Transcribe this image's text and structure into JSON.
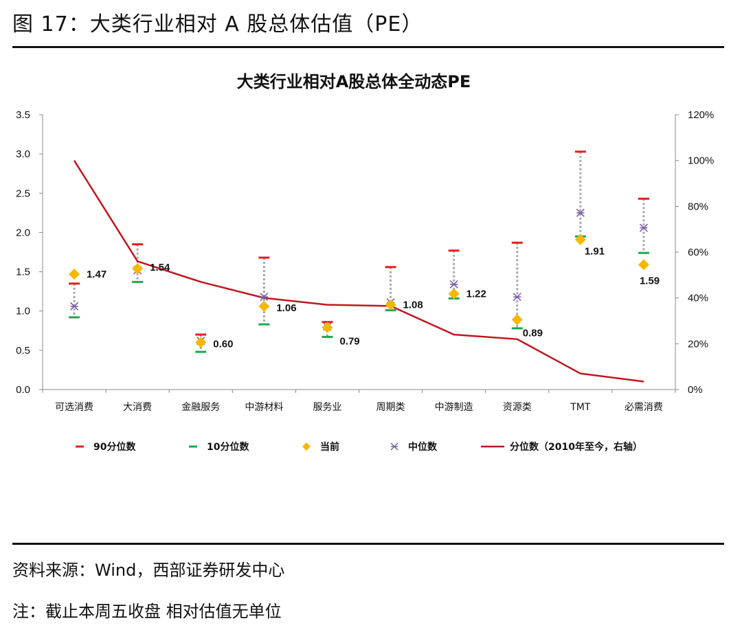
{
  "figure_title": "图 17：大类行业相对 A 股总体估值（PE）",
  "source_note": "资料来源：Wind，西部证券研发中心",
  "remark_note": "注：截止本周五收盘 相对估值无单位",
  "chart_data": {
    "type": "scatter",
    "title": "大类行业相对A股总体全动态PE",
    "categories": [
      "可选消费",
      "大消费",
      "金融服务",
      "中游材料",
      "服务业",
      "周期类",
      "中游制造",
      "资源类",
      "TMT",
      "必需消费"
    ],
    "left_axis": {
      "ylim": [
        0,
        3.5
      ],
      "ticks": [
        "0.0",
        "0.5",
        "1.0",
        "1.5",
        "2.0",
        "2.5",
        "3.0",
        "3.5"
      ]
    },
    "right_axis": {
      "ylim": [
        0,
        120
      ],
      "ticks": [
        "0%",
        "20%",
        "40%",
        "60%",
        "80%",
        "100%",
        "120%"
      ]
    },
    "series": [
      {
        "name": "90分位数",
        "color": "#e0201b",
        "marker": "dash",
        "axis": "left",
        "values": [
          1.35,
          1.85,
          0.7,
          1.68,
          0.86,
          1.56,
          1.77,
          1.87,
          3.03,
          2.43
        ]
      },
      {
        "name": "10分位数",
        "color": "#1aa84f",
        "marker": "dash",
        "axis": "left",
        "values": [
          0.92,
          1.37,
          0.48,
          0.83,
          0.67,
          1.01,
          1.16,
          0.78,
          1.95,
          1.74
        ]
      },
      {
        "name": "当前",
        "color": "#f5b800",
        "marker": "diamond",
        "axis": "left",
        "values": [
          1.47,
          1.54,
          0.6,
          1.06,
          0.79,
          1.08,
          1.22,
          0.89,
          1.91,
          1.59
        ],
        "labels": [
          "1.47",
          "1.54",
          "0.60",
          "1.06",
          "0.79",
          "1.08",
          "1.22",
          "0.89",
          "1.91",
          "1.59"
        ]
      },
      {
        "name": "中位数",
        "color": "#7b5ea7",
        "marker": "star",
        "axis": "left",
        "values": [
          1.06,
          1.52,
          0.62,
          1.18,
          0.8,
          1.11,
          1.34,
          1.18,
          2.25,
          2.06
        ]
      },
      {
        "name": "分位数（2010年至今，右轴）",
        "color": "#c0161e",
        "marker": "line",
        "axis": "right",
        "values": [
          100,
          56,
          47,
          40,
          37,
          36.5,
          24,
          22,
          7,
          3.5
        ]
      }
    ],
    "legend_position": "bottom",
    "grid": false
  }
}
